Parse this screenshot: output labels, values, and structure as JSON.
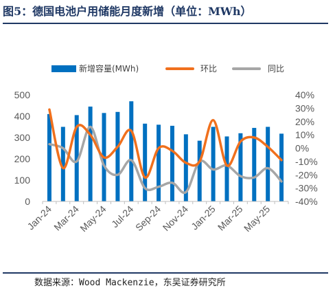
{
  "header": {
    "title": "图5：德国电池户用储能月度新增（单位：MWh）"
  },
  "footer": {
    "source": "数据来源：Wood Mackenzie，东吴证券研究所"
  },
  "colors": {
    "bar": "#0070c0",
    "mom": "#f0701d",
    "yoy": "#a6a6a6",
    "title": "#1f3864",
    "axis": "#bfbfbf"
  },
  "chart_data": {
    "type": "bar",
    "categories": [
      "Jan-24",
      "Feb-24",
      "Mar-24",
      "Apr-24",
      "May-24",
      "Jun-24",
      "Jul-24",
      "Aug-24",
      "Sep-24",
      "Oct-24",
      "Nov-24",
      "Dec-24",
      "Jan-25",
      "Feb-25",
      "Mar-25",
      "Apr-25",
      "May-25",
      "Jun-25"
    ],
    "x_tick_labels": [
      "Jan-24",
      "Mar-24",
      "May-24",
      "Jul-24",
      "Sep-24",
      "Nov-24",
      "Jan-25",
      "Mar-25",
      "May-25"
    ],
    "series": [
      {
        "name": "新增容量(MWh)",
        "type": "bar",
        "axis": "left",
        "values": [
          410,
          350,
          405,
          445,
          415,
          420,
          470,
          365,
          360,
          355,
          315,
          285,
          350,
          305,
          320,
          345,
          350,
          318
        ]
      },
      {
        "name": "环比",
        "type": "line",
        "axis": "right",
        "values": [
          0.29,
          -0.15,
          0.16,
          0.1,
          -0.07,
          0.01,
          0.13,
          -0.22,
          0.0,
          -0.02,
          -0.11,
          -0.1,
          0.21,
          -0.13,
          0.05,
          0.08,
          0.01,
          -0.09
        ]
      },
      {
        "name": "同比",
        "type": "line",
        "axis": "right",
        "values": [
          0.03,
          0.0,
          -0.1,
          0.16,
          -0.13,
          -0.2,
          -0.09,
          -0.3,
          -0.29,
          -0.26,
          -0.33,
          -0.1,
          -0.16,
          -0.13,
          -0.21,
          -0.22,
          -0.15,
          -0.25
        ]
      }
    ],
    "left_axis": {
      "min": 0,
      "max": 500,
      "step": 100,
      "ticks": [
        "0",
        "100",
        "200",
        "300",
        "400",
        "500"
      ]
    },
    "right_axis": {
      "min": -0.4,
      "max": 0.4,
      "step": 0.1,
      "ticks": [
        "-40%",
        "-30%",
        "-20%",
        "-10%",
        "0%",
        "10%",
        "20%",
        "30%",
        "40%"
      ]
    },
    "legend_position": "top",
    "grid": false
  }
}
